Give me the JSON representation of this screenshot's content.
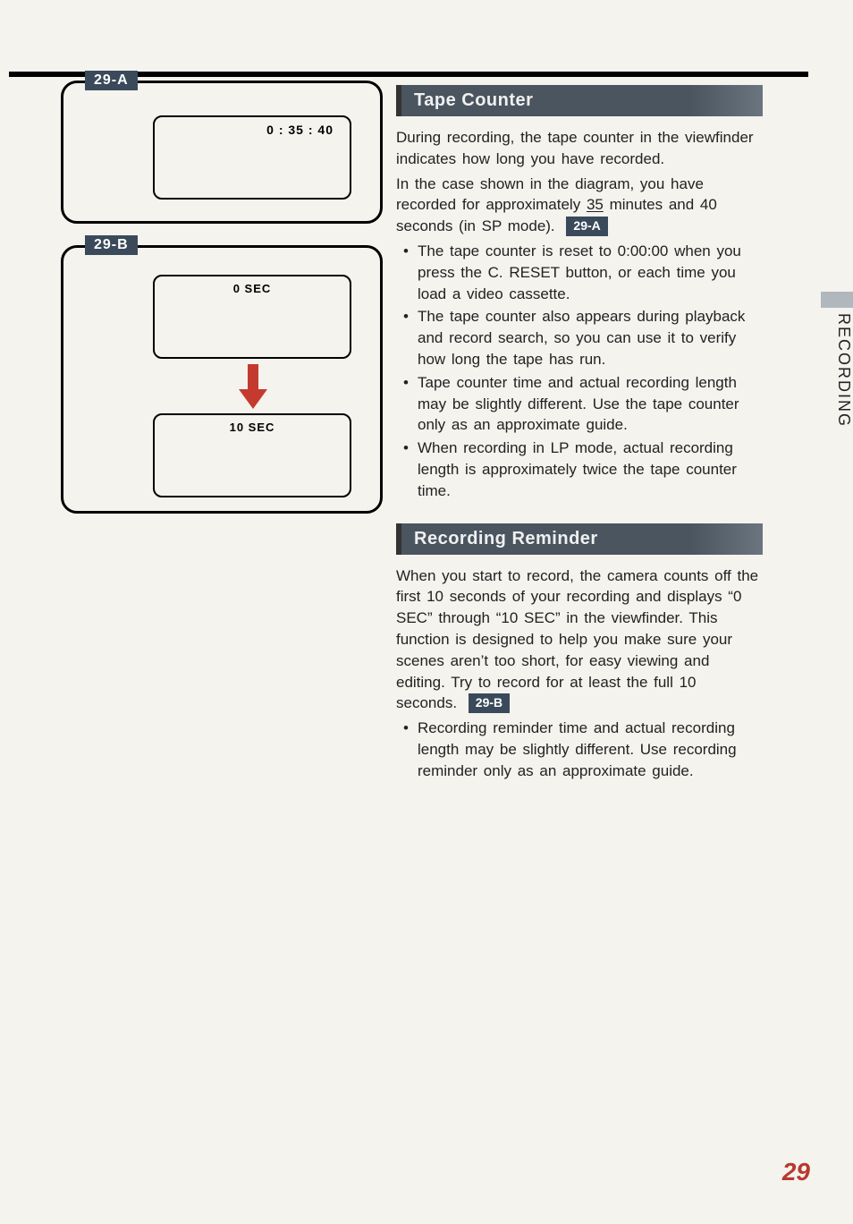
{
  "diagrams": {
    "a": {
      "label": "29-A",
      "counter": "0 : 35 : 40"
    },
    "b": {
      "label": "29-B",
      "sec0": "0 SEC",
      "sec10": "10 SEC"
    }
  },
  "sections": {
    "tape_counter": {
      "heading": "Tape  Counter",
      "p1": "During recording, the tape counter in the viewfinder indicates how long you have recorded.",
      "p2_a": "In the case shown in the diagram, you have recorded for approximately ",
      "p2_u": "35",
      "p2_b": " minutes and 40 seconds (in SP mode).",
      "ref": "29-A",
      "bullets": [
        "The tape counter is reset to 0:00:00 when you press the C. RESET button, or each time you load a video cassette.",
        "The tape counter also appears during playback and record search, so you can use it to verify how long the tape has run.",
        "Tape counter time and actual recording length may be slightly different. Use the tape counter only as an approximate guide.",
        "When recording in LP mode, actual recording length is approximately twice the tape counter time."
      ]
    },
    "recording_reminder": {
      "heading": "Recording  Reminder",
      "p1": "When you start to record, the camera counts off the first 10 seconds of your recording and displays “0 SEC” through “10 SEC” in the viewfinder. This function is designed to help you make sure your scenes aren’t too short, for easy viewing and editing. Try to record for at least the full 10 seconds.",
      "ref": "29-B",
      "bullets": [
        "Recording reminder time and actual recording length may be slightly different. Use recording reminder only as an approximate guide."
      ]
    }
  },
  "side_tab": "RECORDING",
  "page_number": "29"
}
